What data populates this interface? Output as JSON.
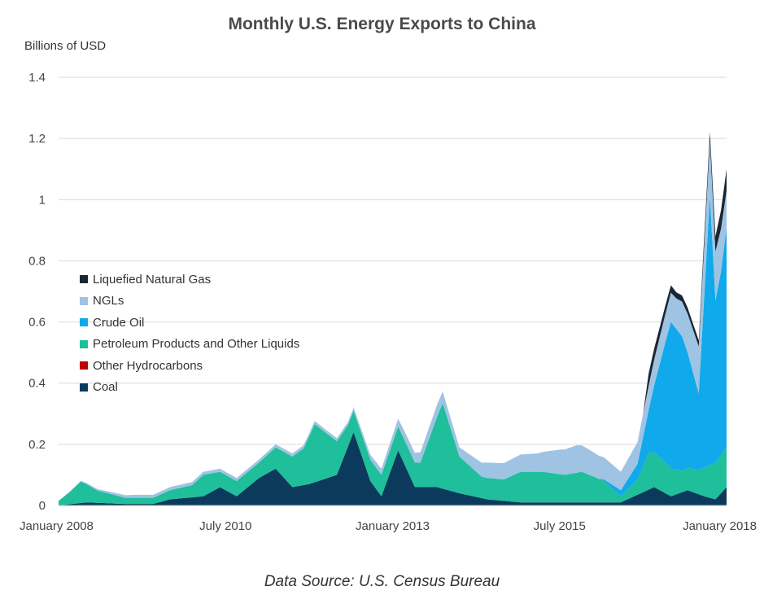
{
  "title": "Monthly U.S. Energy Exports to China",
  "source": "Data Source: U.S. Census Bureau",
  "chart_data": {
    "type": "area",
    "stacked": true,
    "ylabel": "Billions of USD",
    "ylim": [
      0,
      1.4
    ],
    "yticks": [
      "0",
      "0.2",
      "0.4",
      "0.6",
      "0.8",
      "1",
      "1.2",
      "1.4"
    ],
    "xticks": [
      {
        "label": "January 2008",
        "date": "2008-01"
      },
      {
        "label": "July 2010",
        "date": "2010-07"
      },
      {
        "label": "January 2013",
        "date": "2013-01"
      },
      {
        "label": "July 2015",
        "date": "2015-07"
      },
      {
        "label": "January 2018",
        "date": "2018-01"
      }
    ],
    "x_range": [
      "2008-01",
      "2018-01"
    ],
    "grid": true,
    "legend_position": "left-middle",
    "series": [
      {
        "name": "Liquefied Natural Gas",
        "color": "#1b2633",
        "points": [
          [
            "2008-01",
            0
          ],
          [
            "2012-06",
            0.0
          ],
          [
            "2016-10",
            0
          ],
          [
            "2016-11",
            0.04
          ],
          [
            "2017-04",
            0.02
          ],
          [
            "2017-08",
            0.02
          ],
          [
            "2017-09",
            0.03
          ],
          [
            "2017-10",
            0.03
          ],
          [
            "2017-11",
            0.05
          ],
          [
            "2017-12",
            0.06
          ],
          [
            "2018-01",
            0.07
          ]
        ]
      },
      {
        "name": "NGLs",
        "color": "#9fc3e3",
        "points": [
          [
            "2008-01",
            0
          ],
          [
            "2009-03",
            0.01
          ],
          [
            "2010-06",
            0.01
          ],
          [
            "2012-03",
            0.01
          ],
          [
            "2012-06",
            0.01
          ],
          [
            "2013-09",
            0.04
          ],
          [
            "2014-01",
            0.03
          ],
          [
            "2014-06",
            0.05
          ],
          [
            "2015-03",
            0.06
          ],
          [
            "2015-07",
            0.08
          ],
          [
            "2015-10",
            0.09
          ],
          [
            "2016-01",
            0.08
          ],
          [
            "2016-06",
            0.06
          ],
          [
            "2016-11",
            0.08
          ],
          [
            "2017-04",
            0.1
          ],
          [
            "2017-10",
            0.18
          ],
          [
            "2017-12",
            0.14
          ],
          [
            "2018-01",
            0.12
          ]
        ]
      },
      {
        "name": "Crude Oil",
        "color": "#10a9ec",
        "points": [
          [
            "2008-01",
            0
          ],
          [
            "2016-02",
            0
          ],
          [
            "2016-06",
            0.02
          ],
          [
            "2016-09",
            0.05
          ],
          [
            "2016-11",
            0.14
          ],
          [
            "2016-12",
            0.22
          ],
          [
            "2017-03",
            0.48
          ],
          [
            "2017-05",
            0.44
          ],
          [
            "2017-08",
            0.25
          ],
          [
            "2017-10",
            0.88
          ],
          [
            "2017-11",
            0.53
          ],
          [
            "2017-12",
            0.6
          ],
          [
            "2018-01",
            0.72
          ]
        ]
      },
      {
        "name": "Petroleum Products and Other Liquids",
        "color": "#1ebf9a",
        "points": [
          [
            "2008-01",
            0.015
          ],
          [
            "2008-03",
            0.04
          ],
          [
            "2008-05",
            0.07
          ],
          [
            "2008-08",
            0.04
          ],
          [
            "2009-01",
            0.02
          ],
          [
            "2009-06",
            0.02
          ],
          [
            "2009-09",
            0.03
          ],
          [
            "2010-01",
            0.04
          ],
          [
            "2010-03",
            0.07
          ],
          [
            "2010-06",
            0.05
          ],
          [
            "2010-09",
            0.05
          ],
          [
            "2011-01",
            0.05
          ],
          [
            "2011-04",
            0.07
          ],
          [
            "2011-07",
            0.1
          ],
          [
            "2011-09",
            0.12
          ],
          [
            "2011-11",
            0.19
          ],
          [
            "2012-02",
            0.13
          ],
          [
            "2012-05",
            0.07
          ],
          [
            "2012-08",
            0.07
          ],
          [
            "2012-11",
            0.07
          ],
          [
            "2013-03",
            0.08
          ],
          [
            "2013-06",
            0.08
          ],
          [
            "2013-10",
            0.28
          ],
          [
            "2014-01",
            0.12
          ],
          [
            "2014-05",
            0.07
          ],
          [
            "2014-09",
            0.07
          ],
          [
            "2014-12",
            0.1
          ],
          [
            "2015-04",
            0.1
          ],
          [
            "2015-08",
            0.09
          ],
          [
            "2015-11",
            0.1
          ],
          [
            "2016-03",
            0.07
          ],
          [
            "2016-06",
            0.02
          ],
          [
            "2016-09",
            0.05
          ],
          [
            "2016-11",
            0.12
          ],
          [
            "2017-02",
            0.1
          ],
          [
            "2017-05",
            0.07
          ],
          [
            "2017-08",
            0.08
          ],
          [
            "2017-11",
            0.12
          ],
          [
            "2018-01",
            0.13
          ]
        ]
      },
      {
        "name": "Other Hydrocarbons",
        "color": "#c00000",
        "points": [
          [
            "2008-01",
            0
          ],
          [
            "2018-01",
            0
          ]
        ]
      },
      {
        "name": "Coal",
        "color": "#0b3a5c",
        "points": [
          [
            "2008-01",
            0
          ],
          [
            "2008-06",
            0.01
          ],
          [
            "2009-01",
            0.005
          ],
          [
            "2009-06",
            0.005
          ],
          [
            "2009-09",
            0.02
          ],
          [
            "2010-03",
            0.03
          ],
          [
            "2010-06",
            0.06
          ],
          [
            "2010-09",
            0.03
          ],
          [
            "2011-01",
            0.09
          ],
          [
            "2011-04",
            0.12
          ],
          [
            "2011-07",
            0.06
          ],
          [
            "2011-10",
            0.07
          ],
          [
            "2012-03",
            0.1
          ],
          [
            "2012-06",
            0.24
          ],
          [
            "2012-09",
            0.08
          ],
          [
            "2012-11",
            0.03
          ],
          [
            "2013-02",
            0.18
          ],
          [
            "2013-05",
            0.06
          ],
          [
            "2013-09",
            0.06
          ],
          [
            "2014-01",
            0.04
          ],
          [
            "2014-06",
            0.02
          ],
          [
            "2014-12",
            0.01
          ],
          [
            "2015-06",
            0.01
          ],
          [
            "2015-12",
            0.01
          ],
          [
            "2016-06",
            0.01
          ],
          [
            "2016-12",
            0.06
          ],
          [
            "2017-03",
            0.03
          ],
          [
            "2017-06",
            0.05
          ],
          [
            "2017-09",
            0.03
          ],
          [
            "2017-11",
            0.02
          ],
          [
            "2018-01",
            0.06
          ]
        ]
      }
    ]
  }
}
